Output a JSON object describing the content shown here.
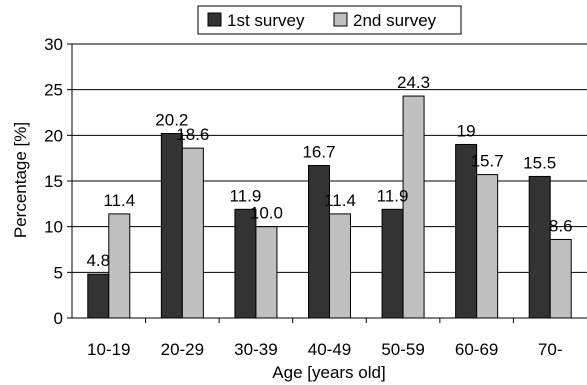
{
  "chart_data": {
    "type": "bar",
    "categories": [
      "10-19",
      "20-29",
      "30-39",
      "40-49",
      "50-59",
      "60-69",
      "70-"
    ],
    "series": [
      {
        "name": "1st survey",
        "color": "#333333",
        "values": [
          4.8,
          20.2,
          11.9,
          16.7,
          11.9,
          19,
          15.5
        ],
        "labels": [
          "4.8",
          "20.2",
          "11.9",
          "16.7",
          "11.9",
          "19",
          "15.5"
        ]
      },
      {
        "name": "2nd survey",
        "color": "#c0c0c0",
        "values": [
          11.4,
          18.6,
          10.0,
          11.4,
          24.3,
          15.7,
          8.6
        ],
        "labels": [
          "11.4",
          "18.6",
          "10.0",
          "11.4",
          "24.3",
          "15.7",
          "8.6"
        ]
      }
    ],
    "xlabel": "Age [years old]",
    "ylabel": "Percentage [%]",
    "ylim": [
      0,
      30
    ],
    "yticks": [
      "0",
      "5",
      "10",
      "15",
      "20",
      "25",
      "30"
    ],
    "grid": true,
    "legend_position": "top"
  }
}
